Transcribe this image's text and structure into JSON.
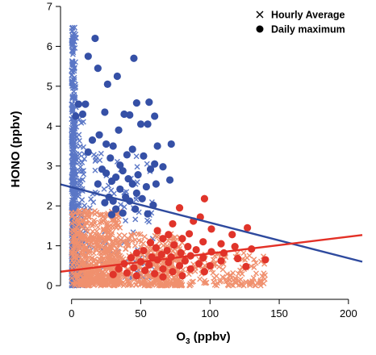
{
  "chart_data": {
    "type": "scatter",
    "xlabel": "O3 (ppbv)",
    "xlabel_base": "O",
    "xlabel_sub": "3",
    "xlabel_unit": " (ppbv)",
    "ylabel": "HONO (ppbv)",
    "xlim": [
      -8,
      210
    ],
    "ylim": [
      -0.1,
      7
    ],
    "xticks": [
      0,
      50,
      100,
      150,
      200
    ],
    "yticks": [
      0,
      1,
      2,
      3,
      4,
      5,
      6,
      7
    ],
    "legend": {
      "position": "top-right",
      "entries": [
        {
          "label": "Hourly Average",
          "marker": "cross"
        },
        {
          "label": "Daily maximum",
          "marker": "filled-circle"
        }
      ]
    },
    "colors": {
      "blue_hourly": "#5b77c6",
      "blue_daily": "#3550a6",
      "blue_line": "#2e4a9e",
      "salmon_hourly": "#f0906e",
      "red_daily": "#e0342a",
      "red_line": "#e33026"
    },
    "series": [
      {
        "marker": "filled-circle",
        "color": "#3550a6",
        "points": [
          [
            17,
            6.2
          ],
          [
            12,
            5.75
          ],
          [
            45,
            5.7
          ],
          [
            19,
            5.45
          ],
          [
            33,
            5.25
          ],
          [
            26,
            5.05
          ],
          [
            47,
            4.58
          ],
          [
            56,
            4.6
          ],
          [
            10,
            4.55
          ],
          [
            8,
            4.3
          ],
          [
            24,
            4.35
          ],
          [
            42,
            4.28
          ],
          [
            5,
            4.55
          ],
          [
            3,
            4.25
          ],
          [
            50,
            4.05
          ],
          [
            60,
            4.25
          ],
          [
            38,
            4.3
          ],
          [
            55,
            4.05
          ],
          [
            34,
            3.9
          ],
          [
            20,
            3.78
          ],
          [
            62,
            3.5
          ],
          [
            72,
            3.55
          ],
          [
            15,
            3.65
          ],
          [
            25,
            3.55
          ],
          [
            30,
            3.5
          ],
          [
            44,
            3.42
          ],
          [
            12,
            3.35
          ],
          [
            40,
            3.28
          ],
          [
            52,
            3.25
          ],
          [
            28,
            3.2
          ],
          [
            60,
            3.05
          ],
          [
            66,
            2.98
          ],
          [
            57,
            2.92
          ],
          [
            35,
            3.02
          ],
          [
            22,
            2.92
          ],
          [
            37,
            2.88
          ],
          [
            48,
            2.78
          ],
          [
            32,
            2.72
          ],
          [
            25,
            2.82
          ],
          [
            41,
            2.68
          ],
          [
            29,
            2.62
          ],
          [
            71,
            2.65
          ],
          [
            61,
            2.55
          ],
          [
            44,
            2.55
          ],
          [
            19,
            2.55
          ],
          [
            35,
            2.42
          ],
          [
            54,
            2.48
          ],
          [
            47,
            2.32
          ],
          [
            39,
            2.22
          ],
          [
            27,
            2.22
          ],
          [
            51,
            2.18
          ],
          [
            30,
            2.12
          ],
          [
            42,
            2.12
          ],
          [
            24,
            2.08
          ],
          [
            59,
            2.02
          ],
          [
            46,
            1.92
          ],
          [
            32,
            1.92
          ],
          [
            37,
            1.82
          ],
          [
            55,
            1.8
          ],
          [
            29,
            1.78
          ]
        ]
      },
      {
        "marker": "filled-circle",
        "color": "#e0342a",
        "points": [
          [
            96,
            2.18
          ],
          [
            78,
            1.95
          ],
          [
            93,
            1.72
          ],
          [
            88,
            1.62
          ],
          [
            73,
            1.55
          ],
          [
            101,
            1.42
          ],
          [
            127,
            1.45
          ],
          [
            62,
            1.38
          ],
          [
            70,
            1.28
          ],
          [
            85,
            1.3
          ],
          [
            116,
            1.28
          ],
          [
            66,
            1.18
          ],
          [
            80,
            1.18
          ],
          [
            95,
            1.1
          ],
          [
            108,
            1.05
          ],
          [
            57,
            1.08
          ],
          [
            74,
            1.02
          ],
          [
            84,
            0.98
          ],
          [
            118,
            0.98
          ],
          [
            130,
            0.92
          ],
          [
            61,
            0.95
          ],
          [
            90,
            0.9
          ],
          [
            69,
            0.88
          ],
          [
            52,
            0.88
          ],
          [
            79,
            0.82
          ],
          [
            101,
            0.85
          ],
          [
            110,
            0.82
          ],
          [
            47,
            0.82
          ],
          [
            65,
            0.78
          ],
          [
            86,
            0.75
          ],
          [
            72,
            0.72
          ],
          [
            58,
            0.72
          ],
          [
            95,
            0.7
          ],
          [
            120,
            0.68
          ],
          [
            140,
            0.65
          ],
          [
            43,
            0.7
          ],
          [
            62,
            0.65
          ],
          [
            82,
            0.62
          ],
          [
            108,
            0.62
          ],
          [
            50,
            0.6
          ],
          [
            70,
            0.58
          ],
          [
            92,
            0.55
          ],
          [
            38,
            0.55
          ],
          [
            56,
            0.52
          ],
          [
            78,
            0.5
          ],
          [
            100,
            0.5
          ],
          [
            126,
            0.48
          ],
          [
            45,
            0.45
          ],
          [
            66,
            0.42
          ],
          [
            86,
            0.42
          ],
          [
            34,
            0.42
          ],
          [
            53,
            0.38
          ],
          [
            73,
            0.35
          ],
          [
            40,
            0.32
          ],
          [
            60,
            0.3
          ],
          [
            96,
            0.35
          ],
          [
            47,
            0.25
          ],
          [
            30,
            0.28
          ],
          [
            66,
            0.22
          ],
          [
            80,
            0.25
          ]
        ]
      }
    ],
    "hourly_clouds": [
      {
        "color": "#5b77c6",
        "description_count": 700
      },
      {
        "color": "#f0906e",
        "description_count": 1100
      }
    ],
    "fit_lines": [
      {
        "color": "#2e4a9e",
        "x": [
          -8,
          210
        ],
        "y": [
          2.54,
          0.6
        ]
      },
      {
        "color": "#e33026",
        "x": [
          -8,
          210
        ],
        "y": [
          0.35,
          1.27
        ]
      }
    ]
  }
}
